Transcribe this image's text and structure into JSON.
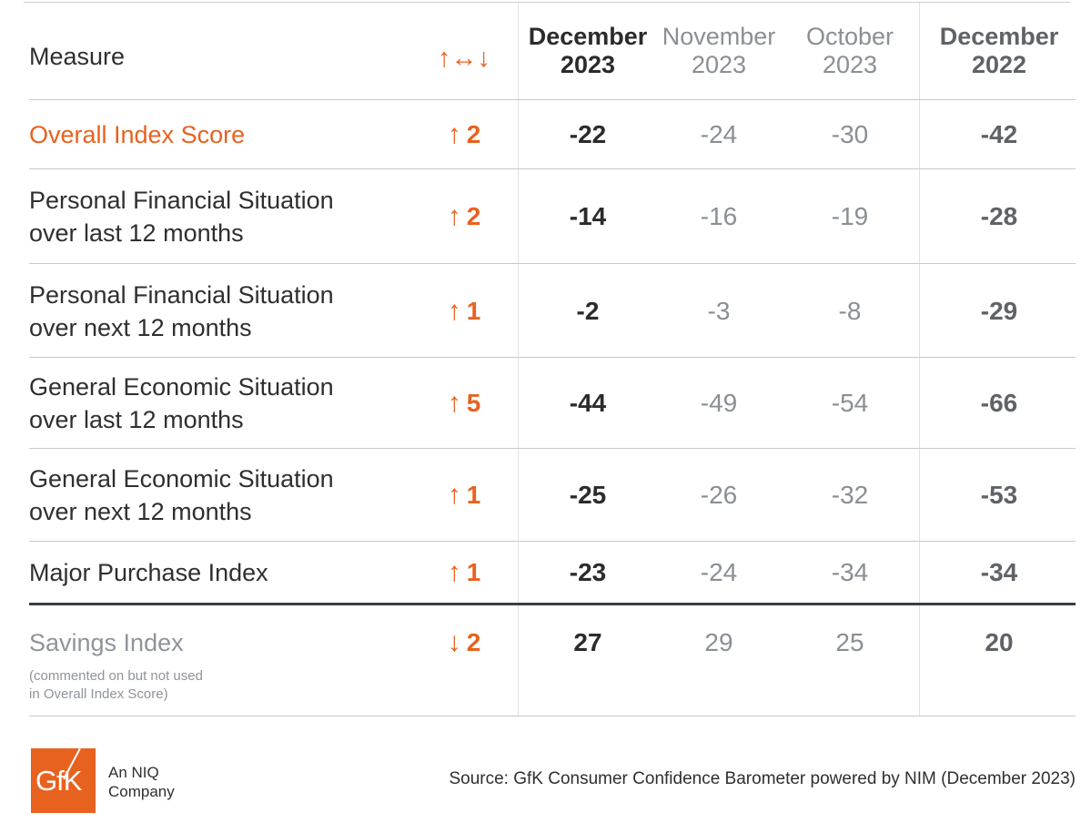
{
  "chart_data": {
    "type": "table",
    "header": {
      "measure": "Measure",
      "change_icon": "up-left-right-down-arrows",
      "change_glyph": "↑↔↓",
      "columns": [
        {
          "month": "December",
          "year": "2023"
        },
        {
          "month": "November",
          "year": "2023"
        },
        {
          "month": "October",
          "year": "2023"
        },
        {
          "month": "December",
          "year": "2022"
        }
      ]
    },
    "rows": [
      {
        "measure": "Overall Index Score",
        "direction": "up",
        "arrow": "↑",
        "change": "2",
        "values": [
          "-22",
          "-24",
          "-30",
          "-42"
        ]
      },
      {
        "measure": "Personal Financial Situation over last 12 months",
        "direction": "up",
        "arrow": "↑",
        "change": "2",
        "values": [
          "-14",
          "-16",
          "-19",
          "-28"
        ]
      },
      {
        "measure": "Personal Financial Situation over next 12 months",
        "direction": "up",
        "arrow": "↑",
        "change": "1",
        "values": [
          "-2",
          "-3",
          "-8",
          "-29"
        ]
      },
      {
        "measure": "General Economic Situation over last 12 months",
        "direction": "up",
        "arrow": "↑",
        "change": "5",
        "values": [
          "-44",
          "-49",
          "-54",
          "-66"
        ]
      },
      {
        "measure": "General Economic Situation over next 12 months",
        "direction": "up",
        "arrow": "↑",
        "change": "1",
        "values": [
          "-25",
          "-26",
          "-32",
          "-53"
        ]
      },
      {
        "measure": "Major Purchase Index",
        "direction": "up",
        "arrow": "↑",
        "change": "1",
        "values": [
          "-23",
          "-24",
          "-34",
          "-34"
        ]
      },
      {
        "measure": "Savings Index",
        "direction": "down",
        "arrow": "↓",
        "change": "2",
        "values": [
          "27",
          "29",
          "25",
          "20"
        ]
      }
    ],
    "savings_note_line1": "(commented on but not used",
    "savings_note_line2": "in Overall Index Score)"
  },
  "footer": {
    "logo_text": "GfK",
    "company_line1": "An NIQ",
    "company_line2": "Company",
    "source": "Source: GfK Consumer Confidence Barometer powered by NIM (December 2023)"
  },
  "colors": {
    "accent": "#e8621f",
    "text": "#2b2b2b",
    "muted": "#8a8f94",
    "dark_rule": "#3a3f45"
  }
}
